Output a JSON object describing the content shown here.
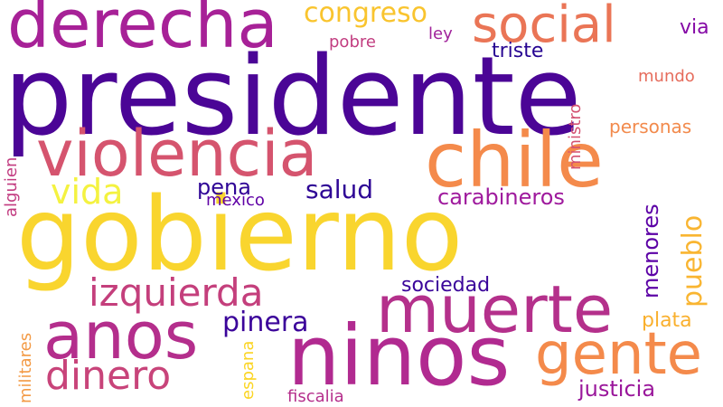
{
  "words": {
    "presidente": {
      "text": "presidente",
      "color": "#4b0596"
    },
    "gobierno": {
      "text": "gobierno",
      "color": "#f9d52e"
    },
    "ninos": {
      "text": "ninos",
      "color": "#b12a90"
    },
    "derecha": {
      "text": "derecha",
      "color": "#a72197"
    },
    "violencia": {
      "text": "violencia",
      "color": "#d5546e"
    },
    "chile": {
      "text": "chile",
      "color": "#f48a4b"
    },
    "muerte": {
      "text": "muerte",
      "color": "#b4308b"
    },
    "anos": {
      "text": "anos",
      "color": "#b42e8c"
    },
    "social": {
      "text": "social",
      "color": "#ea7556"
    },
    "gente": {
      "text": "gente",
      "color": "#f48a4b"
    },
    "izquierda": {
      "text": "izquierda",
      "color": "#c43f7c"
    },
    "dinero": {
      "text": "dinero",
      "color": "#c8447a"
    },
    "congreso": {
      "text": "congreso",
      "color": "#f9c42e"
    },
    "vida": {
      "text": "vida",
      "color": "#f4f240"
    },
    "pueblo": {
      "text": "pueblo",
      "color": "#f9b531"
    },
    "pinera": {
      "text": "pinera",
      "color": "#3b049a"
    },
    "menores": {
      "text": "menores",
      "color": "#5c01a6"
    },
    "salud": {
      "text": "salud",
      "color": "#2e0595"
    },
    "carabineros": {
      "text": "carabineros",
      "color": "#9f1a9d"
    },
    "pena": {
      "text": "pena",
      "color": "#2f0596"
    },
    "justicia": {
      "text": "justicia",
      "color": "#9a179b"
    },
    "sociedad": {
      "text": "sociedad",
      "color": "#3a049a"
    },
    "triste": {
      "text": "triste",
      "color": "#270592"
    },
    "plata": {
      "text": "plata",
      "color": "#f9b02e"
    },
    "personas": {
      "text": "personas",
      "color": "#f28a4c"
    },
    "mexico": {
      "text": "mexico",
      "color": "#5f00a6"
    },
    "pobre": {
      "text": "pobre",
      "color": "#c23d80"
    },
    "ley": {
      "text": "ley",
      "color": "#a1239b"
    },
    "mundo": {
      "text": "mundo",
      "color": "#e66c5c"
    },
    "via": {
      "text": "via",
      "color": "#8509a6"
    },
    "fiscalia": {
      "text": "fiscalia",
      "color": "#b52f8c"
    },
    "espana": {
      "text": "espana",
      "color": "#fbd524"
    },
    "militares": {
      "text": "militares",
      "color": "#f39a45"
    },
    "alguien": {
      "text": "alguien",
      "color": "#c23b80"
    },
    "ministro": {
      "text": "ministro",
      "color": "#d35171"
    }
  }
}
